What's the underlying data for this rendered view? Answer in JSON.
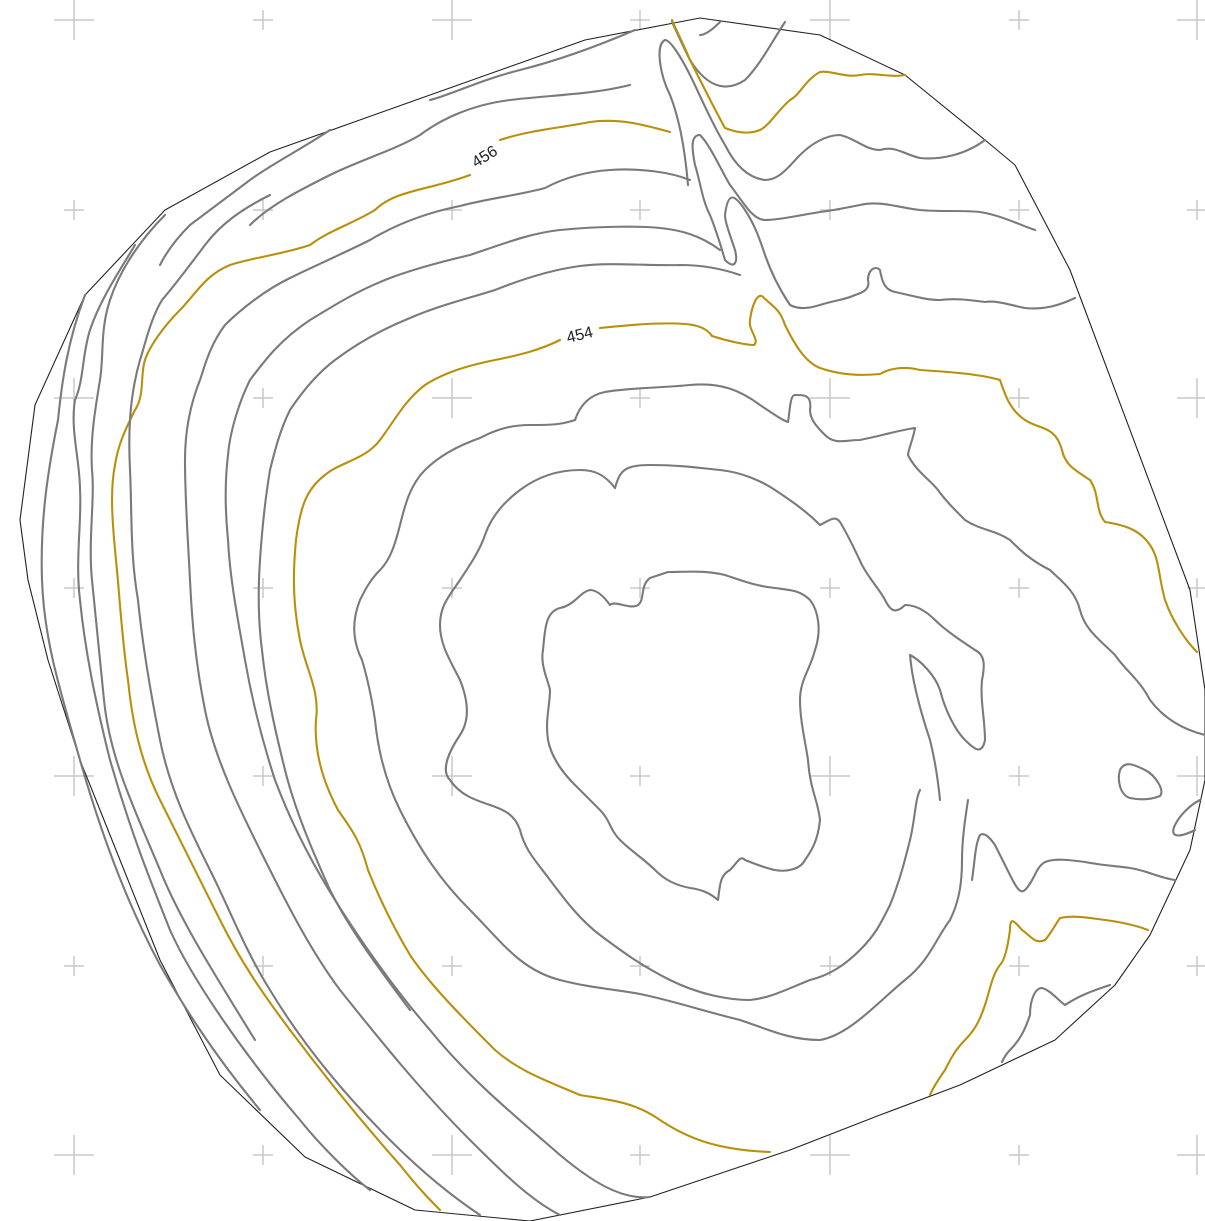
{
  "map": {
    "contour_labels": [
      {
        "id": "label-456",
        "text": "456"
      },
      {
        "id": "label-454",
        "text": "454"
      }
    ],
    "colors": {
      "index_contour": "#b8900c",
      "intermediate_contour": "#7a7a7a",
      "boundary": "#222222",
      "grid_marks": "#c8c8c8",
      "background": "#ffffff"
    }
  }
}
